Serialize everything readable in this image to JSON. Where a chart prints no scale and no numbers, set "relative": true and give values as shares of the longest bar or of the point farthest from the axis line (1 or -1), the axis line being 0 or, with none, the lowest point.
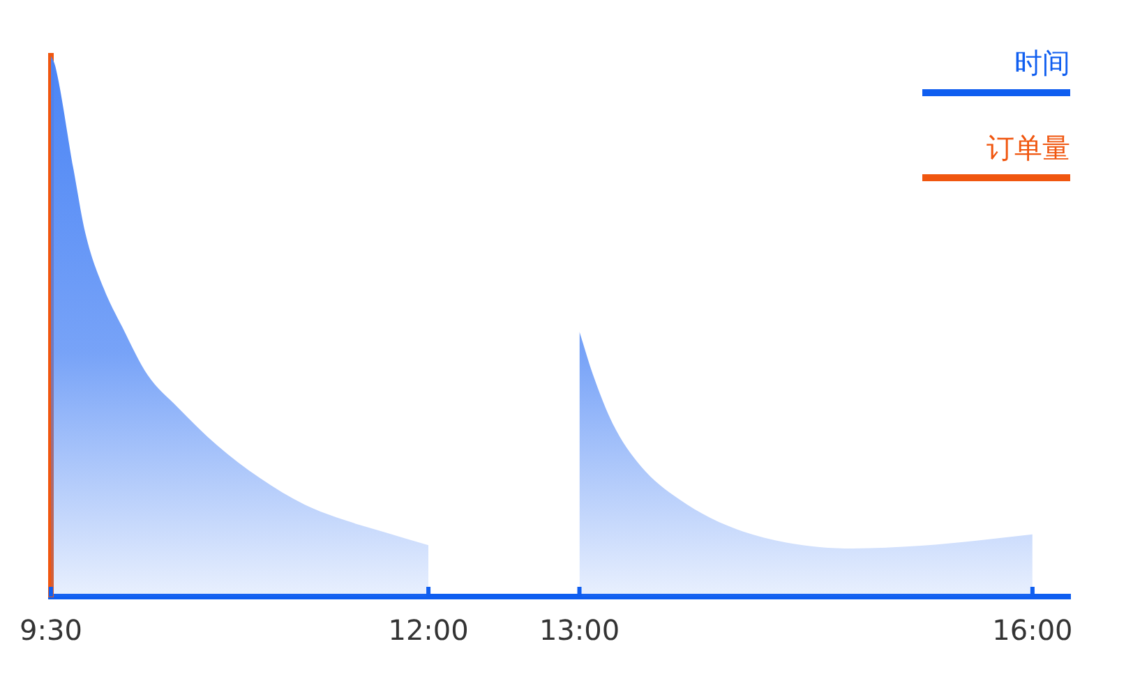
{
  "chart_data": {
    "type": "area",
    "relative": true,
    "xlabel": "时间",
    "ylabel": "订单量",
    "xlim": [
      9.5,
      16.25
    ],
    "xticks": [
      {
        "value": 9.5,
        "label": "9:30"
      },
      {
        "value": 12,
        "label": "12:00"
      },
      {
        "value": 13,
        "label": "13:00"
      },
      {
        "value": 16,
        "label": "16:00"
      }
    ],
    "series": [
      {
        "color": "#4a84f5",
        "x": [
          9.5,
          9.53,
          9.65,
          9.73,
          9.85,
          9.97,
          10.14,
          10.34,
          10.6,
          10.88,
          11.18,
          11.46,
          11.7,
          12
        ],
        "values": [
          1,
          0.98,
          0.79,
          0.67,
          0.57,
          0.5,
          0.41,
          0.35,
          0.28,
          0.22,
          0.17,
          0.14,
          0.12,
          0.095
        ]
      },
      {
        "color": "#4a84f5",
        "x": [
          13,
          13.09,
          13.22,
          13.41,
          13.66,
          13.99,
          14.37,
          14.81,
          15.26,
          15.65,
          16
        ],
        "values": [
          0.49,
          0.41,
          0.32,
          0.24,
          0.18,
          0.13,
          0.1,
          0.089,
          0.094,
          0.104,
          0.115
        ]
      }
    ]
  }
}
